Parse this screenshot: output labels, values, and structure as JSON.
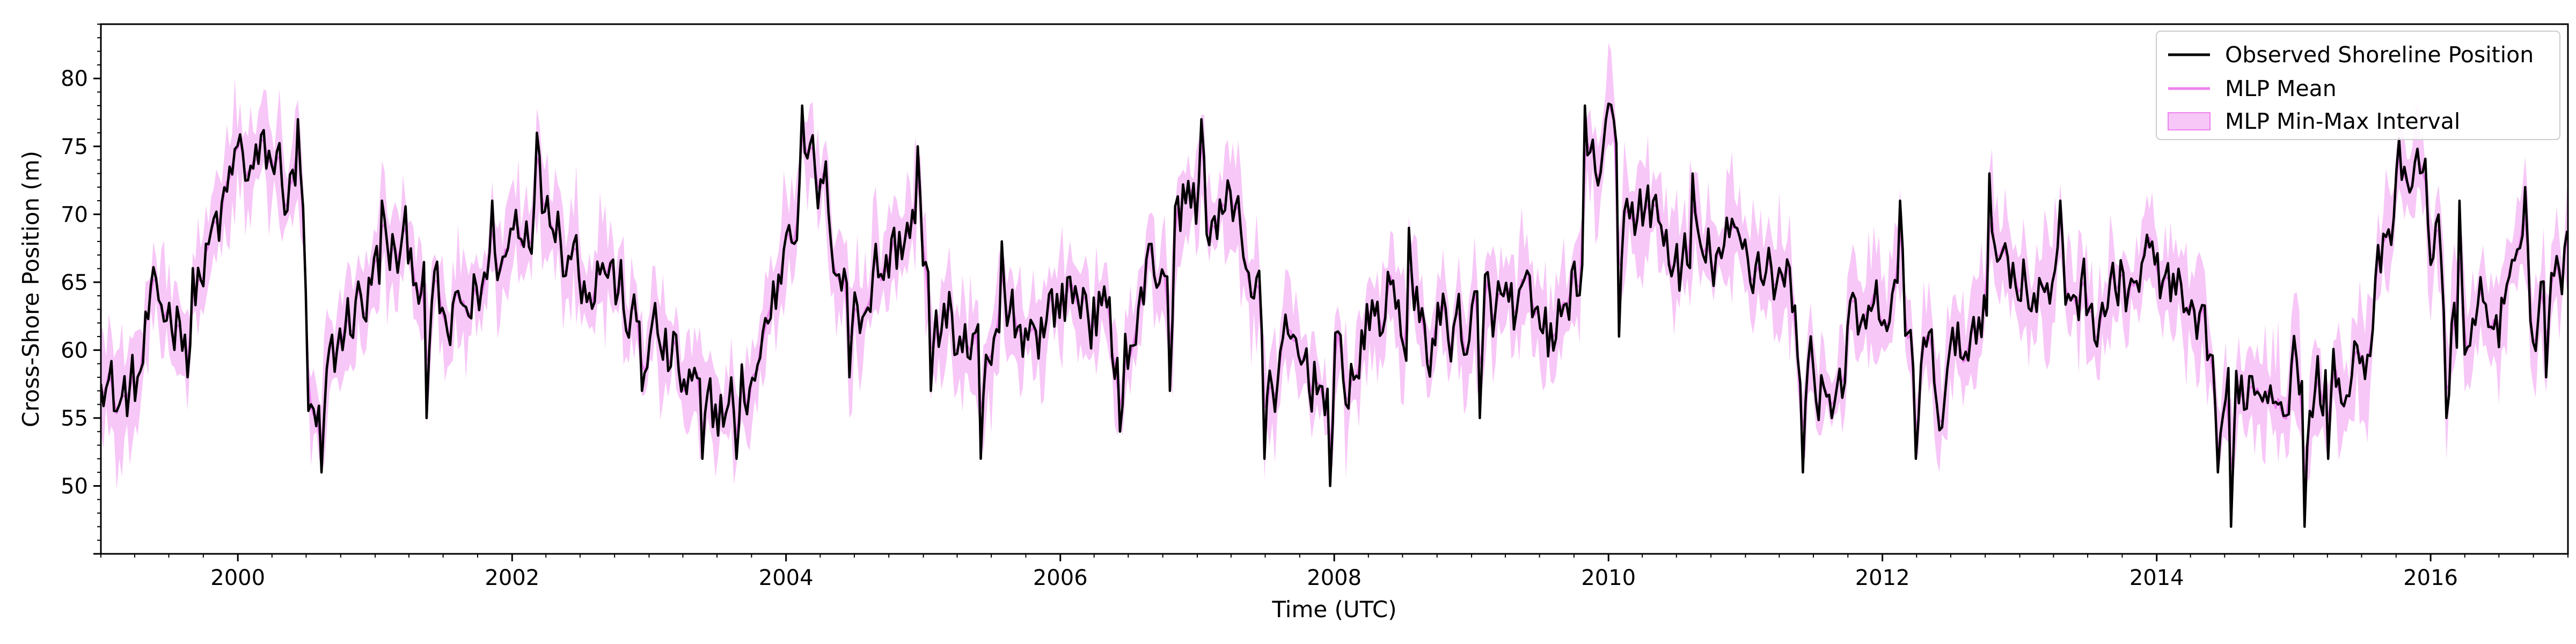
{
  "chart_data": {
    "type": "line",
    "title": "",
    "xlabel": "Time (UTC)",
    "ylabel": "Cross-Shore Position (m)",
    "xlim": [
      "1999-01-01",
      "2017-01-01"
    ],
    "ylim": [
      45,
      84
    ],
    "x_ticks": [
      "2000",
      "2002",
      "2004",
      "2006",
      "2008",
      "2010",
      "2012",
      "2014",
      "2016"
    ],
    "y_ticks": [
      "50",
      "55",
      "60",
      "65",
      "70",
      "75",
      "80"
    ],
    "grid": false,
    "legend_position": "top-right",
    "colors": {
      "observed": "#000000",
      "mean": "#ee82ee",
      "interval": "#ee82ee"
    },
    "series": [
      {
        "name": "Observed Shoreline Position",
        "color": "#000000",
        "anchors": [
          [
            "1999-01-01",
            60
          ],
          [
            "1999-02-15",
            56
          ],
          [
            "1999-04-01",
            57
          ],
          [
            "1999-05-15",
            62
          ],
          [
            "1999-07-01",
            63
          ],
          [
            "1999-08-15",
            63
          ],
          [
            "1999-10-01",
            66
          ],
          [
            "1999-11-15",
            69
          ],
          [
            "2000-01-01",
            74
          ],
          [
            "2000-02-15",
            73
          ],
          [
            "2000-04-01",
            74
          ],
          [
            "2000-05-15",
            72
          ],
          [
            "2000-06-20",
            70
          ],
          [
            "2000-07-10",
            54
          ],
          [
            "2000-08-01",
            53
          ],
          [
            "2000-09-01",
            58
          ],
          [
            "2000-10-15",
            62
          ],
          [
            "2000-12-01",
            64
          ],
          [
            "2001-01-15",
            66
          ],
          [
            "2001-03-01",
            67
          ],
          [
            "2001-04-15",
            67
          ],
          [
            "2001-06-01",
            64
          ],
          [
            "2001-07-15",
            61
          ],
          [
            "2001-09-01",
            63
          ],
          [
            "2001-10-15",
            65
          ],
          [
            "2001-12-01",
            66
          ],
          [
            "2002-01-15",
            70
          ],
          [
            "2002-03-01",
            71
          ],
          [
            "2002-04-15",
            72
          ],
          [
            "2002-06-01",
            68
          ],
          [
            "2002-07-15",
            66
          ],
          [
            "2002-09-01",
            67
          ],
          [
            "2002-10-15",
            64
          ],
          [
            "2002-12-01",
            61
          ],
          [
            "2003-01-15",
            61
          ],
          [
            "2003-03-01",
            59
          ],
          [
            "2003-04-15",
            57
          ],
          [
            "2003-06-01",
            55
          ],
          [
            "2003-07-15",
            56
          ],
          [
            "2003-09-01",
            56
          ],
          [
            "2003-10-15",
            59
          ],
          [
            "2003-12-01",
            64
          ],
          [
            "2004-01-15",
            71
          ],
          [
            "2004-03-01",
            73
          ],
          [
            "2004-04-15",
            71
          ],
          [
            "2004-06-01",
            66
          ],
          [
            "2004-07-15",
            64
          ],
          [
            "2004-09-01",
            66
          ],
          [
            "2004-10-15",
            67
          ],
          [
            "2004-12-01",
            70
          ],
          [
            "2005-01-15",
            64
          ],
          [
            "2005-03-01",
            62
          ],
          [
            "2005-04-15",
            61
          ],
          [
            "2005-06-01",
            58
          ],
          [
            "2005-07-15",
            59
          ],
          [
            "2005-09-01",
            62
          ],
          [
            "2005-10-15",
            62
          ],
          [
            "2005-12-01",
            63
          ],
          [
            "2006-01-15",
            64
          ],
          [
            "2006-03-01",
            64
          ],
          [
            "2006-04-15",
            63
          ],
          [
            "2006-06-01",
            59
          ],
          [
            "2006-07-15",
            61
          ],
          [
            "2006-09-01",
            66
          ],
          [
            "2006-10-15",
            67
          ],
          [
            "2006-12-01",
            71
          ],
          [
            "2007-01-15",
            71
          ],
          [
            "2007-03-01",
            69
          ],
          [
            "2007-04-15",
            71
          ],
          [
            "2007-06-01",
            65
          ],
          [
            "2007-07-10",
            58
          ],
          [
            "2007-09-01",
            59
          ],
          [
            "2007-10-15",
            59
          ],
          [
            "2007-12-01",
            58
          ],
          [
            "2008-01-15",
            58
          ],
          [
            "2008-03-01",
            59
          ],
          [
            "2008-04-15",
            62
          ],
          [
            "2008-06-01",
            64
          ],
          [
            "2008-07-15",
            62
          ],
          [
            "2008-09-01",
            61
          ],
          [
            "2008-10-15",
            62
          ],
          [
            "2008-12-01",
            62
          ],
          [
            "2009-01-15",
            62
          ],
          [
            "2009-03-01",
            63
          ],
          [
            "2009-04-15",
            63
          ],
          [
            "2009-06-01",
            62
          ],
          [
            "2009-07-15",
            60
          ],
          [
            "2009-09-01",
            62
          ],
          [
            "2009-10-15",
            66
          ],
          [
            "2009-12-01",
            74
          ],
          [
            "2010-01-15",
            74
          ],
          [
            "2010-03-01",
            71
          ],
          [
            "2010-04-15",
            70
          ],
          [
            "2010-06-01",
            68
          ],
          [
            "2010-07-15",
            66
          ],
          [
            "2010-09-01",
            66
          ],
          [
            "2010-10-15",
            67
          ],
          [
            "2010-12-01",
            67
          ],
          [
            "2011-01-15",
            67
          ],
          [
            "2011-03-01",
            67
          ],
          [
            "2011-04-15",
            65
          ],
          [
            "2011-06-01",
            60
          ],
          [
            "2011-07-15",
            58
          ],
          [
            "2011-09-01",
            58
          ],
          [
            "2011-10-15",
            61
          ],
          [
            "2011-12-01",
            61
          ],
          [
            "2012-01-15",
            63
          ],
          [
            "2012-03-01",
            62
          ],
          [
            "2012-04-15",
            59
          ],
          [
            "2012-06-01",
            57
          ],
          [
            "2012-07-15",
            59
          ],
          [
            "2012-09-01",
            62
          ],
          [
            "2012-10-15",
            66
          ],
          [
            "2012-12-01",
            67
          ],
          [
            "2013-01-15",
            66
          ],
          [
            "2013-03-01",
            64
          ],
          [
            "2013-04-15",
            64
          ],
          [
            "2013-06-01",
            65
          ],
          [
            "2013-07-15",
            63
          ],
          [
            "2013-09-01",
            64
          ],
          [
            "2013-10-15",
            65
          ],
          [
            "2013-12-01",
            66
          ],
          [
            "2014-01-15",
            65
          ],
          [
            "2014-03-01",
            63
          ],
          [
            "2014-04-15",
            60
          ],
          [
            "2014-06-01",
            57
          ],
          [
            "2014-07-15",
            56
          ],
          [
            "2014-09-01",
            58
          ],
          [
            "2014-10-15",
            58
          ],
          [
            "2014-12-01",
            59
          ],
          [
            "2015-01-15",
            59
          ],
          [
            "2015-03-01",
            57
          ],
          [
            "2015-04-15",
            58
          ],
          [
            "2015-06-01",
            60
          ],
          [
            "2015-07-15",
            61
          ],
          [
            "2015-09-01",
            66
          ],
          [
            "2015-10-15",
            72
          ],
          [
            "2015-12-01",
            73
          ],
          [
            "2016-01-15",
            68
          ],
          [
            "2016-02-15",
            61
          ],
          [
            "2016-04-01",
            61
          ],
          [
            "2016-05-15",
            63
          ],
          [
            "2016-07-01",
            63
          ],
          [
            "2016-08-15",
            64
          ],
          [
            "2016-10-01",
            64
          ],
          [
            "2016-11-15",
            66
          ],
          [
            "2017-01-01",
            67
          ]
        ],
        "spikes": [
          [
            "1999-08-20",
            58
          ],
          [
            "2000-06-10",
            77
          ],
          [
            "2000-08-10",
            51
          ],
          [
            "2001-01-20",
            71
          ],
          [
            "2001-05-20",
            55
          ],
          [
            "2001-11-10",
            71
          ],
          [
            "2002-03-10",
            76
          ],
          [
            "2002-12-10",
            57
          ],
          [
            "2003-05-20",
            52
          ],
          [
            "2003-08-20",
            52
          ],
          [
            "2004-02-10",
            78
          ],
          [
            "2004-06-20",
            58
          ],
          [
            "2004-12-20",
            75
          ],
          [
            "2005-01-20",
            57
          ],
          [
            "2005-06-01",
            52
          ],
          [
            "2005-08-01",
            68
          ],
          [
            "2006-06-10",
            54
          ],
          [
            "2006-10-20",
            57
          ],
          [
            "2007-01-10",
            77
          ],
          [
            "2007-07-01",
            52
          ],
          [
            "2007-12-20",
            50
          ],
          [
            "2008-07-20",
            69
          ],
          [
            "2009-01-20",
            55
          ],
          [
            "2009-11-01",
            78
          ],
          [
            "2010-02-01",
            61
          ],
          [
            "2010-08-10",
            73
          ],
          [
            "2011-06-01",
            51
          ],
          [
            "2011-08-20",
            55
          ],
          [
            "2012-02-20",
            71
          ],
          [
            "2012-04-01",
            52
          ],
          [
            "2012-10-10",
            73
          ],
          [
            "2013-04-20",
            71
          ],
          [
            "2014-06-10",
            51
          ],
          [
            "2014-07-20",
            47
          ],
          [
            "2015-02-01",
            47
          ],
          [
            "2015-04-01",
            52
          ],
          [
            "2016-02-10",
            55
          ],
          [
            "2016-03-20",
            71
          ],
          [
            "2016-09-10",
            72
          ],
          [
            "2016-11-01",
            58
          ]
        ]
      },
      {
        "name": "MLP Mean",
        "color": "#ee82ee",
        "derived_from": "Observed Shoreline Position (smoothed)"
      },
      {
        "name": "MLP Min-Max Interval",
        "color": "#ee82ee",
        "type": "band",
        "derived_from": "MLP Mean"
      }
    ]
  }
}
